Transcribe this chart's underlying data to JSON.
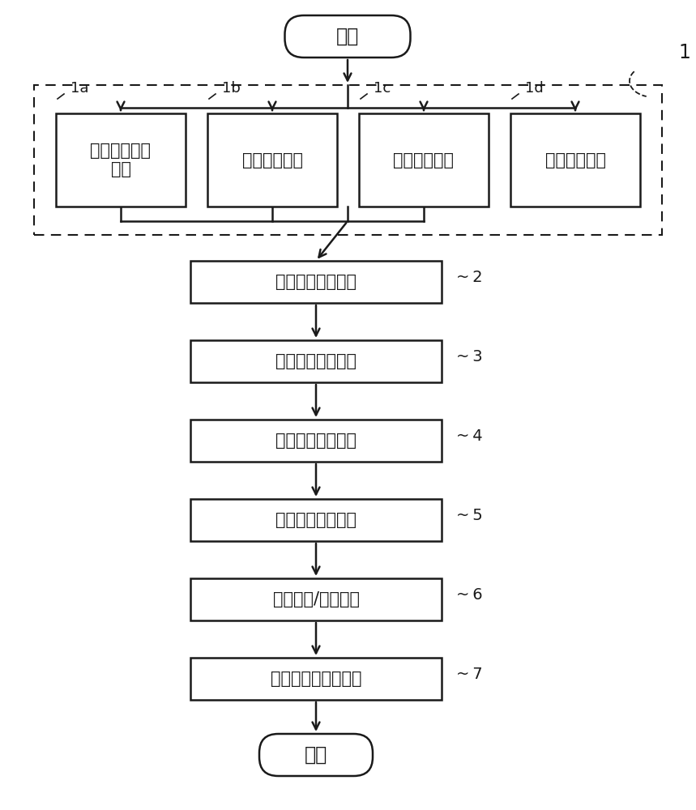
{
  "bg_color": "#ffffff",
  "line_color": "#1a1a1a",
  "text_color": "#1a1a1a",
  "start_end_text": [
    "开始",
    "结束"
  ],
  "parallel_boxes": [
    {
      "label": "制作高压储存\n容器",
      "tag": "1a"
    },
    {
      "label": "准备集装箱撬",
      "tag": "1b"
    },
    {
      "label": "准备灭火部件",
      "tag": "1c"
    },
    {
      "label": "准备主要部件",
      "tag": "1d"
    }
  ],
  "main_steps": [
    {
      "label": "储存容器装配步骤",
      "tag": "2"
    },
    {
      "label": "灭火管道装配步骤",
      "tag": "3"
    },
    {
      "label": "主要部件装配步骤",
      "tag": "4"
    },
    {
      "label": "控制装置装配步骤",
      "tag": "5"
    },
    {
      "label": "性能测试/检验步骤",
      "tag": "6"
    },
    {
      "label": "包装及出库准备步骤",
      "tag": "7"
    }
  ],
  "outer_tag": "1",
  "font_size_main": 15,
  "font_size_tag": 13,
  "font_size_start_end": 17
}
